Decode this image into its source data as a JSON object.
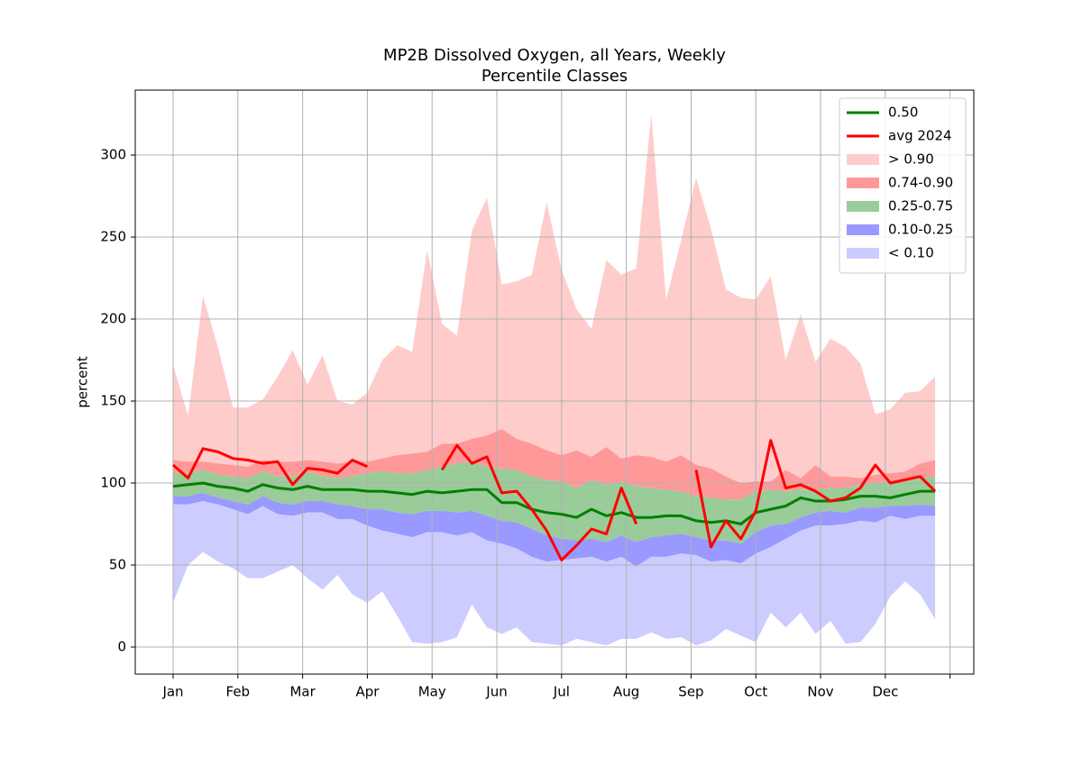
{
  "chart_data": {
    "type": "band",
    "title": "MP2B Dissolved Oxygen, all Years, Weekly",
    "subtitle": "Percentile Classes",
    "y_label": "percent",
    "x": [
      0,
      1,
      2,
      3,
      4,
      5,
      6,
      7,
      8,
      9,
      10,
      11,
      12,
      13,
      14,
      15,
      16,
      17,
      18,
      19,
      20,
      21,
      22,
      23,
      24,
      25,
      26,
      27,
      28,
      29,
      30,
      31,
      32,
      33,
      34,
      35,
      36,
      37,
      38,
      39,
      40,
      41,
      42,
      43,
      44,
      45,
      46,
      47,
      48,
      49,
      50,
      51
    ],
    "xlim": [
      -2.535,
      53.59
    ],
    "xticks": [
      {
        "value": 0,
        "label": "Jan"
      },
      {
        "value": 4.333,
        "label": "Feb"
      },
      {
        "value": 8.667,
        "label": "Mar"
      },
      {
        "value": 13,
        "label": "Apr"
      },
      {
        "value": 17.333,
        "label": "May"
      },
      {
        "value": 21.667,
        "label": "Jun"
      },
      {
        "value": 26,
        "label": "Jul"
      },
      {
        "value": 30.333,
        "label": "Aug"
      },
      {
        "value": 34.667,
        "label": "Sep"
      },
      {
        "value": 39,
        "label": "Oct"
      },
      {
        "value": 43.333,
        "label": "Nov"
      },
      {
        "value": 47.667,
        "label": "Dec"
      },
      {
        "value": 52,
        "label": null
      }
    ],
    "ylim": [
      -16.5,
      339.6
    ],
    "yticks": [
      0,
      50,
      100,
      150,
      200,
      250,
      300
    ],
    "grid": true,
    "legend": "upper right",
    "series": [
      {
        "name": "0.50",
        "color": "#008000",
        "values": [
          98,
          99,
          100,
          98,
          97,
          95,
          99,
          97,
          96,
          98,
          96,
          96,
          96,
          95,
          95,
          94,
          93,
          95,
          94,
          95,
          96,
          96,
          88,
          88,
          84,
          82,
          81,
          79,
          84,
          80,
          82,
          79,
          79,
          80,
          80,
          77,
          76,
          77,
          75,
          82,
          84,
          86,
          91,
          89,
          89,
          90,
          92,
          92,
          91,
          93,
          95,
          95
        ]
      },
      {
        "name": "avg 2024",
        "color": "#ff0000",
        "values": [
          111,
          103,
          121,
          119,
          115,
          114,
          112,
          113,
          99,
          109,
          108,
          106,
          114,
          110,
          null,
          null,
          null,
          null,
          108,
          123,
          112,
          116,
          94,
          95,
          84,
          71,
          53,
          62,
          72,
          69,
          97,
          75,
          null,
          null,
          null,
          108,
          61,
          77,
          66,
          83,
          126,
          97,
          99,
          95,
          89,
          91,
          97,
          111,
          100,
          102,
          104,
          95
        ]
      }
    ],
    "bands": [
      {
        "name": "> 0.90",
        "color": "#ffcccc",
        "values": [
          172,
          141,
          214,
          183,
          146,
          146,
          151,
          165,
          181,
          160,
          178,
          150,
          148,
          155,
          175,
          184,
          180,
          242,
          197,
          190,
          254,
          274,
          221,
          223,
          227,
          271,
          230,
          206,
          194,
          236,
          227,
          231,
          325,
          212,
          248,
          286,
          255,
          218,
          213,
          212,
          226,
          175,
          203,
          174,
          188,
          183,
          173,
          142,
          145,
          155,
          156,
          165
        ]
      },
      {
        "name": "0.74-0.90",
        "color": "#ff9999",
        "values": [
          114,
          113,
          113,
          112,
          111,
          110,
          114,
          113,
          113,
          114,
          113,
          112,
          113,
          113,
          115,
          117,
          118,
          119,
          124,
          124,
          127,
          129,
          133,
          127,
          124,
          120,
          117,
          120,
          116,
          122,
          115,
          117,
          116,
          113,
          117,
          111,
          109,
          104,
          100,
          101,
          101,
          108,
          103,
          111,
          104,
          104,
          103,
          105,
          106,
          107,
          112,
          114
        ]
      },
      {
        "name": "0.25-0.75",
        "color": "#99cc99",
        "values": [
          106,
          106,
          108,
          105,
          104,
          103,
          107,
          104,
          104,
          107,
          104,
          103,
          104,
          106,
          107,
          106,
          106,
          108,
          110,
          112,
          113,
          110,
          109,
          108,
          104,
          102,
          101,
          97,
          102,
          99,
          101,
          98,
          97,
          96,
          95,
          92,
          91,
          90,
          90,
          95,
          96,
          95,
          96,
          96,
          97,
          97,
          99,
          100,
          101,
          101,
          103,
          104
        ]
      },
      {
        "name": "0.10-0.25",
        "color": "#9999ff",
        "values": [
          92,
          92,
          94,
          91,
          89,
          87,
          92,
          88,
          87,
          89,
          89,
          87,
          86,
          84,
          84,
          82,
          81,
          83,
          83,
          82,
          83,
          80,
          77,
          76,
          72,
          68,
          66,
          65,
          66,
          64,
          68,
          64,
          67,
          68,
          69,
          67,
          65,
          65,
          63,
          70,
          74,
          75,
          79,
          82,
          83,
          82,
          85,
          85,
          86,
          86,
          87,
          86
        ]
      },
      {
        "name": "< 0.10",
        "color": "#ccccff",
        "values": [
          87,
          87,
          89,
          87,
          84,
          81,
          86,
          81,
          80,
          82,
          82,
          78,
          78,
          74,
          71,
          69,
          67,
          70,
          70,
          68,
          70,
          65,
          63,
          60,
          55,
          52,
          53,
          54,
          55,
          52,
          55,
          49,
          55,
          55,
          57,
          56,
          52,
          53,
          51,
          57,
          61,
          66,
          71,
          74,
          74,
          75,
          77,
          76,
          80,
          78,
          80,
          80
        ],
        "lower": [
          27,
          50,
          58,
          52,
          48,
          42,
          42,
          46,
          50,
          42,
          35,
          44,
          32,
          27,
          34,
          19,
          3,
          2,
          3,
          6,
          26,
          12,
          8,
          12,
          3,
          2,
          1,
          5,
          3,
          1,
          5,
          5,
          9,
          5,
          6,
          1,
          4,
          11,
          7,
          3,
          21,
          12,
          21,
          8,
          16,
          2,
          3,
          14,
          31,
          40,
          32,
          17
        ]
      }
    ]
  }
}
